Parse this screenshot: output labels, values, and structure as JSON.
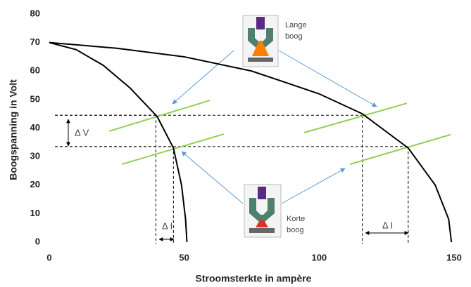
{
  "chart_data": {
    "type": "line",
    "x_label": "Stroomsterkte in ampère",
    "y_label": "Boogspanning in Volt",
    "xlim": [
      0,
      150
    ],
    "xticks": [
      0,
      50,
      100,
      150
    ],
    "ylim": [
      0,
      80
    ],
    "yticks": [
      0,
      10,
      20,
      30,
      40,
      50,
      60,
      70,
      80
    ],
    "series": [
      {
        "color": "#000000",
        "x": [
          0,
          10,
          20,
          30,
          40,
          46,
          49,
          50.5,
          51
        ],
        "values": [
          70,
          67.5,
          62,
          54,
          44,
          33,
          20,
          8,
          0
        ]
      },
      {
        "color": "#000000",
        "x": [
          0,
          25,
          50,
          75,
          100,
          116,
          133,
          143,
          148,
          149
        ],
        "values": [
          70,
          68,
          65,
          60,
          52,
          45,
          33,
          20,
          8,
          0
        ]
      }
    ],
    "arc_lines": {
      "color": "#92d050",
      "lines": [
        {
          "x": [
            22.2,
            59.5
          ],
          "values": [
            38.9,
            49.7
          ]
        },
        {
          "x": [
            26.9,
            64.7
          ],
          "values": [
            27.3,
            37.9
          ]
        },
        {
          "x": [
            94.4,
            132.5
          ],
          "values": [
            38.4,
            48.7
          ]
        },
        {
          "x": [
            111.4,
            148.7
          ],
          "values": [
            27.3,
            37.7
          ]
        }
      ]
    },
    "operating_points": {
      "x": [
        39.5,
        46,
        116,
        133
      ],
      "y": [
        44.5,
        33.5,
        44.5,
        33.5
      ]
    },
    "annotations": {
      "lange_boog": [
        "Lange",
        "boog"
      ],
      "korte_boog": [
        "Korte",
        "boog"
      ],
      "delta_v": "Δ V",
      "delta_i_left": "Δ I",
      "delta_i_right": "Δ I"
    }
  }
}
